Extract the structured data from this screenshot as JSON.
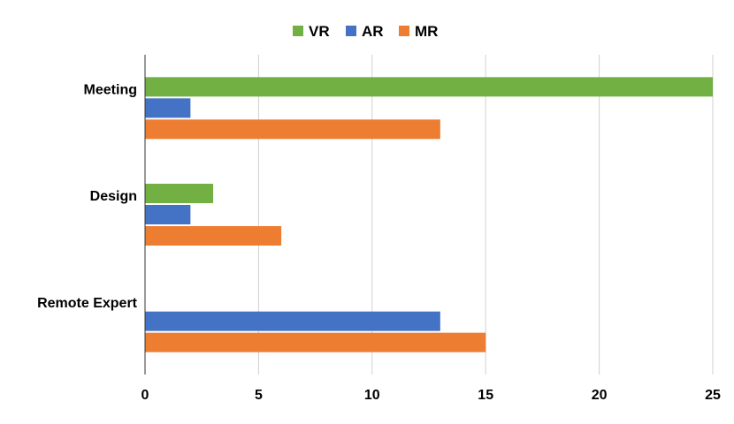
{
  "chart_data": {
    "type": "bar",
    "orientation": "horizontal",
    "categories": [
      "Meeting",
      "Design",
      "Remote Expert"
    ],
    "series": [
      {
        "name": "VR",
        "values": [
          25,
          3,
          0
        ],
        "color": "#72b043"
      },
      {
        "name": "AR",
        "values": [
          2,
          2,
          13
        ],
        "color": "#4472c4"
      },
      {
        "name": "MR",
        "values": [
          13,
          6,
          15
        ],
        "color": "#ed7d31"
      }
    ],
    "xlim": [
      0,
      25
    ],
    "xticks": [
      "0",
      "5",
      "10",
      "15",
      "20",
      "25"
    ],
    "grid": true,
    "legend": "top-center"
  }
}
